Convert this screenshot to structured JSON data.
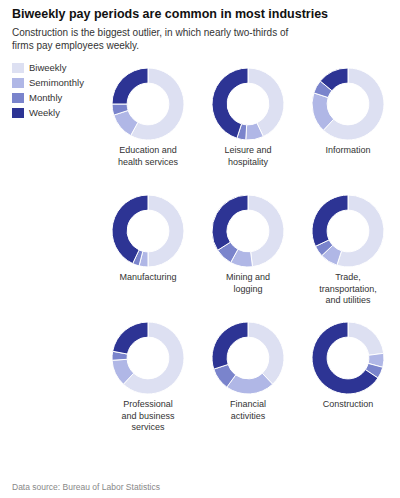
{
  "chart_data": {
    "type": "pie",
    "title": "Biweekly pay periods are common in most industries",
    "subtitle": "Construction is the biggest outlier, in which nearly two-thirds of\nfirms pay employees weekly.",
    "annotations": [
      "Data source: Bureau of Labor Statistics"
    ],
    "categories": [
      "Biweekly",
      "Semimonthly",
      "Monthly",
      "Weekly"
    ],
    "colors": [
      "#dde0f2",
      "#b0b7e6",
      "#7a84cc",
      "#2d3494"
    ],
    "legend": "upper left",
    "series": [
      {
        "name": "Education and\nhealth services",
        "values": [
          58,
          12,
          5,
          25
        ]
      },
      {
        "name": "Leisure and\nhospitality",
        "values": [
          43,
          8,
          4,
          45
        ]
      },
      {
        "name": "Information",
        "values": [
          62,
          18,
          6,
          14
        ]
      },
      {
        "name": "Manufacturing",
        "values": [
          50,
          4,
          3,
          43
        ]
      },
      {
        "name": "Mining and\nlogging",
        "values": [
          48,
          10,
          8,
          34
        ]
      },
      {
        "name": "Trade,\ntransportation,\nand utilities",
        "values": [
          55,
          8,
          5,
          32
        ]
      },
      {
        "name": "Professional\nand business\nservices",
        "values": [
          62,
          12,
          4,
          22
        ]
      },
      {
        "name": "Financial\nactivities",
        "values": [
          38,
          22,
          10,
          30
        ]
      },
      {
        "name": "Construction",
        "values": [
          22,
          6,
          5,
          63
        ]
      }
    ]
  }
}
